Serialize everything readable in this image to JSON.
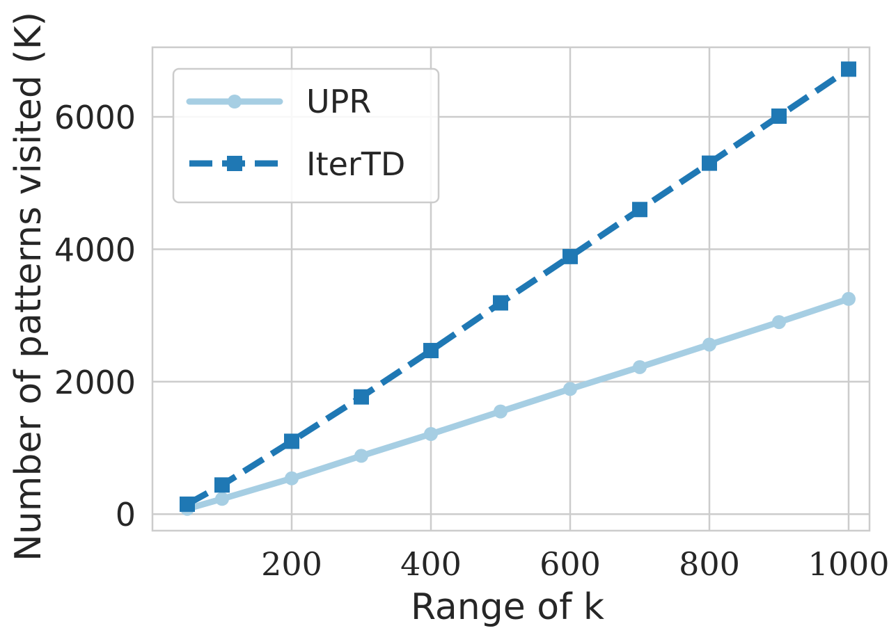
{
  "chart_data": {
    "type": "line",
    "xlabel": "Range of k",
    "ylabel": "Number of patterns visited (K)",
    "xlim": [
      0,
      1030
    ],
    "ylim": [
      -250,
      7050
    ],
    "xticks": [
      200,
      400,
      600,
      800,
      1000
    ],
    "yticks": [
      0,
      2000,
      4000,
      6000
    ],
    "grid": true,
    "legend_position": "top-left",
    "x": [
      50,
      100,
      200,
      300,
      400,
      500,
      600,
      700,
      800,
      900,
      1000
    ],
    "series": [
      {
        "name": "UPR",
        "color": "#a6cee3",
        "marker": "circle",
        "linestyle": "solid",
        "values": [
          80,
          230,
          540,
          880,
          1210,
          1550,
          1890,
          2220,
          2560,
          2900,
          3250
        ]
      },
      {
        "name": "IterTD",
        "color": "#1f78b4",
        "marker": "square",
        "linestyle": "dashed",
        "values": [
          150,
          440,
          1100,
          1770,
          2470,
          3190,
          3890,
          4600,
          5300,
          6010,
          6720
        ]
      }
    ]
  }
}
